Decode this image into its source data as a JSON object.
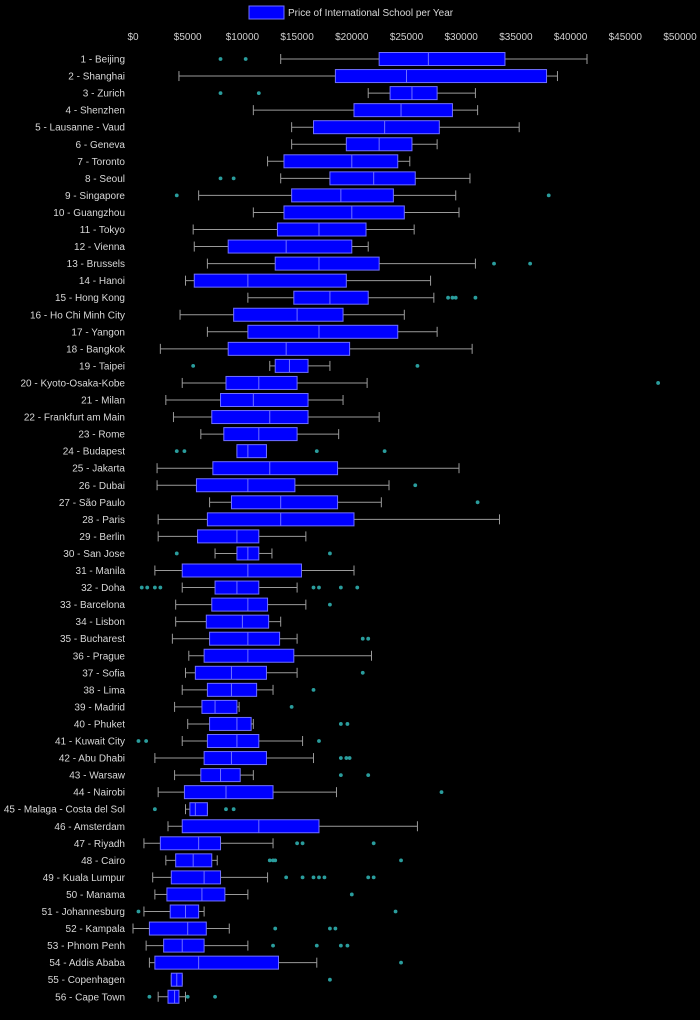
{
  "chart_data": {
    "type": "boxplot",
    "orientation": "horizontal",
    "legend": {
      "label": "Price of International School per Year",
      "placement": "top-center"
    },
    "x_axis": {
      "min": 0,
      "max": 50000,
      "position": "top",
      "ticks": [
        0,
        5000,
        10000,
        15000,
        20000,
        25000,
        30000,
        35000,
        40000,
        45000,
        50000
      ],
      "tick_labels": [
        "$0",
        "$5000",
        "$10000",
        "$15000",
        "$20000",
        "$25000",
        "$30000",
        "$35000",
        "$40000",
        "$45000",
        "$50000"
      ]
    },
    "colors": {
      "box_fill": "#0000ff",
      "box_stroke": "#7070ff",
      "whisker": "#9a9a9a",
      "outlier": "#2a9d9d",
      "background": "#000000"
    },
    "series": [
      {
        "label": "1 - Beijing",
        "min": 13500,
        "q1": 22500,
        "median": 27000,
        "q3": 34000,
        "max": 41500,
        "outliers": [
          8000,
          10300
        ]
      },
      {
        "label": "2 - Shanghai",
        "min": 4200,
        "q1": 18500,
        "median": 25000,
        "q3": 37800,
        "max": 38800,
        "outliers": []
      },
      {
        "label": "3 - Zurich",
        "min": 21500,
        "q1": 23500,
        "median": 25500,
        "q3": 27800,
        "max": 31300,
        "outliers": [
          8000,
          11500
        ]
      },
      {
        "label": "4 - Shenzhen",
        "min": 11000,
        "q1": 20200,
        "median": 24500,
        "q3": 29200,
        "max": 31500,
        "outliers": []
      },
      {
        "label": "5 - Lausanne - Vaud",
        "min": 14500,
        "q1": 16500,
        "median": 23000,
        "q3": 28000,
        "max": 35300,
        "outliers": []
      },
      {
        "label": "6 - Geneva",
        "min": 14500,
        "q1": 19500,
        "median": 22500,
        "q3": 25500,
        "max": 27800,
        "outliers": []
      },
      {
        "label": "7 - Toronto",
        "min": 12300,
        "q1": 13800,
        "median": 20000,
        "q3": 24200,
        "max": 25300,
        "outliers": []
      },
      {
        "label": "8 - Seoul",
        "min": 13500,
        "q1": 18000,
        "median": 22000,
        "q3": 25800,
        "max": 30800,
        "outliers": [
          8000,
          9200
        ]
      },
      {
        "label": "9 - Singapore",
        "min": 6000,
        "q1": 14500,
        "median": 19000,
        "q3": 23800,
        "max": 29500,
        "outliers": [
          4000,
          38000
        ]
      },
      {
        "label": "10 - Guangzhou",
        "min": 11000,
        "q1": 13800,
        "median": 20000,
        "q3": 24800,
        "max": 29800,
        "outliers": []
      },
      {
        "label": "11 - Tokyo",
        "min": 5500,
        "q1": 13200,
        "median": 17000,
        "q3": 21300,
        "max": 25700,
        "outliers": []
      },
      {
        "label": "12 - Vienna",
        "min": 5600,
        "q1": 8700,
        "median": 14000,
        "q3": 20000,
        "max": 21500,
        "outliers": []
      },
      {
        "label": "13 - Brussels",
        "min": 6800,
        "q1": 13000,
        "median": 17000,
        "q3": 22500,
        "max": 31300,
        "outliers": [
          33000,
          36300
        ]
      },
      {
        "label": "14 - Hanoi",
        "min": 4800,
        "q1": 5600,
        "median": 10500,
        "q3": 19500,
        "max": 27200,
        "outliers": []
      },
      {
        "label": "15 - Hong Kong",
        "min": 10500,
        "q1": 14700,
        "median": 18000,
        "q3": 21500,
        "max": 27500,
        "outliers": [
          28800,
          29200,
          29500,
          31300
        ]
      },
      {
        "label": "16 - Ho Chi Minh City",
        "min": 4300,
        "q1": 9200,
        "median": 15000,
        "q3": 19200,
        "max": 24800,
        "outliers": []
      },
      {
        "label": "17 - Yangon",
        "min": 6800,
        "q1": 10500,
        "median": 17000,
        "q3": 24200,
        "max": 27800,
        "outliers": []
      },
      {
        "label": "18 - Bangkok",
        "min": 2500,
        "q1": 8700,
        "median": 14000,
        "q3": 19800,
        "max": 31000,
        "outliers": []
      },
      {
        "label": "19 - Taipei",
        "min": 12500,
        "q1": 13000,
        "median": 14300,
        "q3": 16000,
        "max": 18000,
        "outliers": [
          5500,
          26000
        ]
      },
      {
        "label": "20 - Kyoto-Osaka-Kobe",
        "min": 4500,
        "q1": 8500,
        "median": 11500,
        "q3": 15000,
        "max": 21400,
        "outliers": [
          48000
        ]
      },
      {
        "label": "21 - Milan",
        "min": 3000,
        "q1": 8000,
        "median": 11000,
        "q3": 16000,
        "max": 19200,
        "outliers": []
      },
      {
        "label": "22 - Frankfurt am Main",
        "min": 3700,
        "q1": 7200,
        "median": 12500,
        "q3": 16000,
        "max": 22500,
        "outliers": []
      },
      {
        "label": "23 - Rome",
        "min": 6200,
        "q1": 8300,
        "median": 11500,
        "q3": 15000,
        "max": 18800,
        "outliers": []
      },
      {
        "label": "24 - Budapest",
        "min": 9500,
        "q1": 9500,
        "median": 10500,
        "q3": 12200,
        "max": 12200,
        "outliers": [
          4000,
          4700,
          16800,
          23000
        ]
      },
      {
        "label": "25 - Jakarta",
        "min": 2200,
        "q1": 7300,
        "median": 12500,
        "q3": 18700,
        "max": 29800,
        "outliers": []
      },
      {
        "label": "26 - Dubai",
        "min": 2200,
        "q1": 5800,
        "median": 10500,
        "q3": 14800,
        "max": 23400,
        "outliers": [
          25800
        ]
      },
      {
        "label": "27 - São Paulo",
        "min": 7000,
        "q1": 9000,
        "median": 13500,
        "q3": 18700,
        "max": 22700,
        "outliers": [
          31500
        ]
      },
      {
        "label": "28 - Paris",
        "min": 2300,
        "q1": 6800,
        "median": 13500,
        "q3": 20200,
        "max": 33500,
        "outliers": []
      },
      {
        "label": "29 - Berlin",
        "min": 2300,
        "q1": 5900,
        "median": 9500,
        "q3": 11500,
        "max": 15800,
        "outliers": []
      },
      {
        "label": "30 - San Jose",
        "min": 7500,
        "q1": 9500,
        "median": 10500,
        "q3": 11500,
        "max": 12700,
        "outliers": [
          4000,
          18000
        ]
      },
      {
        "label": "31 - Manila",
        "min": 2000,
        "q1": 4500,
        "median": 10500,
        "q3": 15400,
        "max": 20200,
        "outliers": []
      },
      {
        "label": "32 - Doha",
        "min": 4500,
        "q1": 7500,
        "median": 9500,
        "q3": 11500,
        "max": 15000,
        "outliers": [
          800,
          1300,
          2000,
          2500,
          16500,
          17000,
          19000,
          20500
        ]
      },
      {
        "label": "33 - Barcelona",
        "min": 3900,
        "q1": 7200,
        "median": 10500,
        "q3": 12300,
        "max": 15800,
        "outliers": [
          18000
        ]
      },
      {
        "label": "34 - Lisbon",
        "min": 3900,
        "q1": 6700,
        "median": 10000,
        "q3": 12400,
        "max": 13500,
        "outliers": []
      },
      {
        "label": "35 - Bucharest",
        "min": 3600,
        "q1": 7000,
        "median": 10500,
        "q3": 13400,
        "max": 15000,
        "outliers": [
          21000,
          21500
        ]
      },
      {
        "label": "36 - Prague",
        "min": 5100,
        "q1": 6500,
        "median": 10500,
        "q3": 14700,
        "max": 21800,
        "outliers": []
      },
      {
        "label": "37 - Sofia",
        "min": 4800,
        "q1": 5700,
        "median": 9000,
        "q3": 12200,
        "max": 15000,
        "outliers": [
          21000
        ]
      },
      {
        "label": "38 - Lima",
        "min": 4500,
        "q1": 6800,
        "median": 9000,
        "q3": 11300,
        "max": 12800,
        "outliers": [
          16500
        ]
      },
      {
        "label": "39 - Madrid",
        "min": 3800,
        "q1": 6300,
        "median": 7500,
        "q3": 9500,
        "max": 9700,
        "outliers": [
          14500
        ]
      },
      {
        "label": "40 - Phuket",
        "min": 5000,
        "q1": 7000,
        "median": 9500,
        "q3": 10800,
        "max": 11000,
        "outliers": [
          19000,
          19600
        ]
      },
      {
        "label": "41 - Kuwait City",
        "min": 4500,
        "q1": 6800,
        "median": 9500,
        "q3": 11500,
        "max": 15500,
        "outliers": [
          500,
          1200,
          17000
        ]
      },
      {
        "label": "42 - Abu Dhabi",
        "min": 2000,
        "q1": 6500,
        "median": 9000,
        "q3": 12200,
        "max": 16500,
        "outliers": [
          19000,
          19500,
          19800
        ]
      },
      {
        "label": "43 - Warsaw",
        "min": 3800,
        "q1": 6200,
        "median": 8000,
        "q3": 9800,
        "max": 11000,
        "outliers": [
          19000,
          21500
        ]
      },
      {
        "label": "44 - Nairobi",
        "min": 2300,
        "q1": 4700,
        "median": 8500,
        "q3": 12800,
        "max": 18600,
        "outliers": [
          28200
        ]
      },
      {
        "label": "45 - Malaga - Costa del Sol",
        "min": 4800,
        "q1": 5200,
        "median": 5700,
        "q3": 6800,
        "max": 6800,
        "outliers": [
          2000,
          8500,
          9200
        ]
      },
      {
        "label": "46 - Amsterdam",
        "min": 3200,
        "q1": 4500,
        "median": 11500,
        "q3": 17000,
        "max": 26000,
        "outliers": []
      },
      {
        "label": "47 - Riyadh",
        "min": 1000,
        "q1": 2500,
        "median": 6000,
        "q3": 8000,
        "max": 12800,
        "outliers": [
          15000,
          15500,
          22000
        ]
      },
      {
        "label": "48 - Cairo",
        "min": 3000,
        "q1": 3900,
        "median": 5500,
        "q3": 7200,
        "max": 7700,
        "outliers": [
          12500,
          12800,
          13000,
          24500
        ]
      },
      {
        "label": "49 - Kuala Lumpur",
        "min": 1800,
        "q1": 3500,
        "median": 6500,
        "q3": 8000,
        "max": 12300,
        "outliers": [
          14000,
          15500,
          16500,
          17000,
          17500,
          21500,
          22000
        ]
      },
      {
        "label": "50 - Manama",
        "min": 2000,
        "q1": 3100,
        "median": 6300,
        "q3": 8400,
        "max": 10500,
        "outliers": [
          20000
        ]
      },
      {
        "label": "51 - Johannesburg",
        "min": 1000,
        "q1": 3400,
        "median": 4800,
        "q3": 6000,
        "max": 6500,
        "outliers": [
          500,
          24000
        ]
      },
      {
        "label": "52 - Kampala",
        "min": 0,
        "q1": 1500,
        "median": 5000,
        "q3": 6700,
        "max": 8800,
        "outliers": [
          13000,
          18000,
          18500
        ]
      },
      {
        "label": "53 - Phnom Penh",
        "min": 1200,
        "q1": 2800,
        "median": 4500,
        "q3": 6500,
        "max": 10500,
        "outliers": [
          12800,
          16800,
          19000,
          19600
        ]
      },
      {
        "label": "54 - Addis Ababa",
        "min": 1500,
        "q1": 2000,
        "median": 6000,
        "q3": 13300,
        "max": 16800,
        "outliers": [
          24500
        ]
      },
      {
        "label": "55 - Copenhagen",
        "min": 3500,
        "q1": 3500,
        "median": 4000,
        "q3": 4500,
        "max": 4500,
        "outliers": [
          18000
        ]
      },
      {
        "label": "56 - Cape Town",
        "min": 2300,
        "q1": 3200,
        "median": 3800,
        "q3": 4200,
        "max": 4800,
        "outliers": [
          1500,
          5000,
          7500
        ]
      }
    ]
  }
}
